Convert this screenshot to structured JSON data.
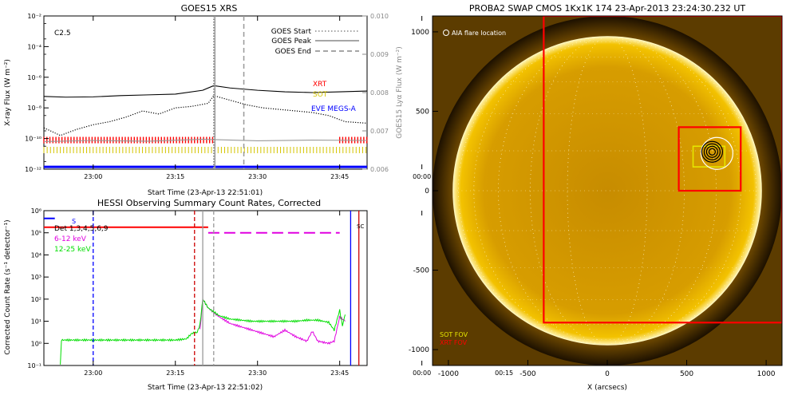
{
  "chart_data": [
    {
      "type": "line",
      "title": "GOES15 XRS",
      "flare_class": "C2.5",
      "xlabel": "Start Time (23-Apr-13 22:51:01)",
      "ylabel": "X-ray Flux (W m⁻²)",
      "y2label": "GOES15 Lyα Flux (W m⁻²)",
      "xlim_min": [
        -9,
        50
      ],
      "xticks": [
        {
          "label": "23:00",
          "min": 0
        },
        {
          "label": "23:15",
          "min": 15
        },
        {
          "label": "23:30",
          "min": 30
        },
        {
          "label": "23:45",
          "min": 45
        },
        {
          "label": "00:00",
          "min": 60
        },
        {
          "label": "00:15",
          "min": 75
        }
      ],
      "yscale": "log",
      "ylim_exp": [
        -12,
        -2
      ],
      "yticks": [
        {
          "label": "10⁻²",
          "exp": -2
        },
        {
          "label": "10⁻⁴",
          "exp": -4
        },
        {
          "label": "10⁻⁶",
          "exp": -6
        },
        {
          "label": "10⁻⁸",
          "exp": -8
        },
        {
          "label": "10⁻¹⁰",
          "exp": -10
        },
        {
          "label": "10⁻¹²",
          "exp": -12
        }
      ],
      "y2lim": [
        0.006,
        0.01
      ],
      "y2ticks": [
        "0.006",
        "0.007",
        "0.008",
        "0.009",
        "0.010"
      ],
      "event_lines": {
        "start": 22,
        "peak": 22,
        "end": 27.5
      },
      "legend": [
        {
          "label": "GOES Start",
          "style": "dotted"
        },
        {
          "label": "GOES Peak",
          "style": "solid"
        },
        {
          "label": "GOES End",
          "style": "dashed"
        }
      ],
      "instrument_labels": [
        {
          "label": "XRT",
          "color": "#ff0000"
        },
        {
          "label": "SOT",
          "color": "#d4c400"
        },
        {
          "label": "EVE MEGS-A",
          "color": "#0000ff"
        }
      ],
      "series": [
        {
          "name": "long",
          "style": "solid",
          "color": "#000000",
          "x_min": [
            -9,
            -5,
            0,
            5,
            10,
            15,
            20,
            22,
            25,
            30,
            35,
            40,
            45,
            50
          ],
          "y_exp": [
            -7.25,
            -7.3,
            -7.28,
            -7.2,
            -7.15,
            -7.1,
            -6.85,
            -6.55,
            -6.7,
            -6.85,
            -6.95,
            -7.0,
            -6.95,
            -6.9
          ]
        },
        {
          "name": "short",
          "style": "dotted",
          "color": "#000000",
          "x_min": [
            -9,
            -6,
            -3,
            0,
            3,
            6,
            9,
            12,
            15,
            18,
            21,
            22,
            23,
            25,
            28,
            31,
            34,
            37,
            40,
            43,
            46,
            50
          ],
          "y_exp": [
            -9.3,
            -9.8,
            -9.4,
            -9.1,
            -8.9,
            -8.6,
            -8.2,
            -8.4,
            -8.0,
            -7.9,
            -7.7,
            -7.2,
            -7.3,
            -7.5,
            -7.8,
            -8.0,
            -8.1,
            -8.2,
            -8.3,
            -8.5,
            -8.9,
            -9.0
          ]
        },
        {
          "name": "lyman",
          "style": "solid",
          "color": "#999999",
          "x_min": [
            -9,
            0,
            10,
            20,
            30,
            40,
            50
          ],
          "y2": [
            0.00672,
            0.00675,
            0.00673,
            0.00678,
            0.00674,
            0.00676,
            0.00675
          ]
        }
      ],
      "coverage": {
        "xrt_exp": -10.1,
        "xrt_segments_min": [
          [
            -9,
            22
          ],
          [
            45,
            50
          ]
        ],
        "sot_exp": -10.75,
        "sot_segments_min": [
          [
            -9,
            50
          ]
        ],
        "eve_exp": -11.85,
        "eve_segments_min": [
          [
            -9,
            50
          ]
        ]
      }
    },
    {
      "type": "line",
      "title": "HESSI Observing Summary Count Rates, Corrected",
      "xlabel": "Start Time (23-Apr-13 22:51:02)",
      "ylabel": "Corrected Count Rate (s⁻¹ detector⁻¹)",
      "xlim_min": [
        -9,
        50
      ],
      "xticks": [
        {
          "label": "23:00",
          "min": 0
        },
        {
          "label": "23:15",
          "min": 15
        },
        {
          "label": "23:30",
          "min": 30
        },
        {
          "label": "23:45",
          "min": 45
        },
        {
          "label": "00:00",
          "min": 60
        },
        {
          "label": "00:15",
          "min": 75
        }
      ],
      "yscale": "log",
      "ylim_exp": [
        -1,
        6
      ],
      "yticks": [
        {
          "label": "10⁶",
          "exp": 6
        },
        {
          "label": "10⁵",
          "exp": 5
        },
        {
          "label": "10⁴",
          "exp": 4
        },
        {
          "label": "10³",
          "exp": 3
        },
        {
          "label": "10²",
          "exp": 2
        },
        {
          "label": "10¹",
          "exp": 1
        },
        {
          "label": "10⁰",
          "exp": 0
        },
        {
          "label": "10⁻¹",
          "exp": -1
        }
      ],
      "flags": [
        "Det 1,3,4,5,6,9",
        "S",
        "SC"
      ],
      "legend": [
        {
          "label": "6-12 keV",
          "color": "#e000e0"
        },
        {
          "label": "12-25 keV",
          "color": "#00dd00"
        }
      ],
      "vlines": [
        {
          "min": 0,
          "style": "dashed",
          "color": "#0000ff"
        },
        {
          "min": 18.5,
          "style": "dashed",
          "color": "#cc0000"
        },
        {
          "min": 20,
          "style": "solid",
          "color": "#999999"
        },
        {
          "min": 22,
          "style": "dashed",
          "color": "#999999"
        },
        {
          "min": 47,
          "style": "solid",
          "color": "#0000ff"
        },
        {
          "min": 48.5,
          "style": "solid",
          "color": "#cc0000"
        }
      ],
      "series": [
        {
          "name": "6-12 keV",
          "color": "#e000e0",
          "x_min": [
            19.5,
            20,
            21,
            23,
            25,
            27,
            29,
            31,
            33,
            35,
            37,
            38,
            39,
            40,
            41,
            42,
            43,
            44,
            45,
            46
          ],
          "y_exp": [
            0.6,
            2.0,
            1.6,
            1.2,
            0.9,
            0.75,
            0.6,
            0.45,
            0.3,
            0.6,
            0.3,
            0.2,
            0.1,
            0.55,
            0.1,
            0.05,
            0.0,
            0.1,
            1.2,
            1.0
          ]
        },
        {
          "name": "12-25 keV",
          "color": "#00dd00",
          "x_min": [
            -6,
            -5.8,
            0,
            15,
            17,
            18,
            19,
            19.5,
            20,
            21,
            23,
            25,
            27,
            29,
            31,
            33,
            35,
            37,
            39,
            41,
            43,
            44,
            45,
            45.5,
            46
          ],
          "y_exp": [
            -1,
            0.15,
            0.15,
            0.15,
            0.2,
            0.45,
            0.5,
            0.85,
            2.0,
            1.6,
            1.25,
            1.1,
            1.05,
            1.0,
            1.0,
            1.0,
            1.0,
            1.0,
            1.05,
            1.05,
            0.95,
            0.6,
            1.5,
            0.8,
            1.3
          ]
        },
        {
          "name": "top-red",
          "color": "#ff0000",
          "x_min": [
            -9,
            21
          ],
          "y_exp": [
            5.25,
            5.25
          ]
        },
        {
          "name": "top-blue",
          "color": "#0000ff",
          "x_min": [
            -9,
            -7
          ],
          "y_exp": [
            5.65,
            5.65
          ]
        },
        {
          "name": "top-magenta-dashed",
          "color": "#e000e0",
          "x_min": [
            21,
            45
          ],
          "y_exp": [
            5.0,
            5.0
          ]
        }
      ]
    },
    {
      "type": "image",
      "title": "PROBA2 SWAP CMOS 1Kx1K 174 23-Apr-2013 23:24:30.232 UT",
      "xlabel": "X (arcsecs)",
      "ylabel": "Y (arcsecs)",
      "xlim": [
        -1100,
        1100
      ],
      "ylim": [
        -1100,
        1100
      ],
      "ticks": [
        -1000,
        -500,
        0,
        500,
        1000
      ],
      "annotations": {
        "aia": "AIA flare location",
        "sot_fov": "SOT FOV",
        "xrt_fov": "XRT FOV"
      },
      "xrt_fov": {
        "x0": -400,
        "y0": -830,
        "x1": 1100,
        "y1": 1100
      },
      "xrt_small": {
        "x0": 450,
        "y0": 0,
        "x1": 840,
        "y1": 400
      },
      "sot_fov": {
        "x0": 540,
        "y0": 150,
        "x1": 740,
        "y1": 280
      },
      "flare_xy": [
        660,
        245
      ],
      "disk_radius": 970,
      "colors": {
        "sun": "#e1a400",
        "xrt": "#ff0000",
        "sot": "#e6e600"
      }
    }
  ]
}
